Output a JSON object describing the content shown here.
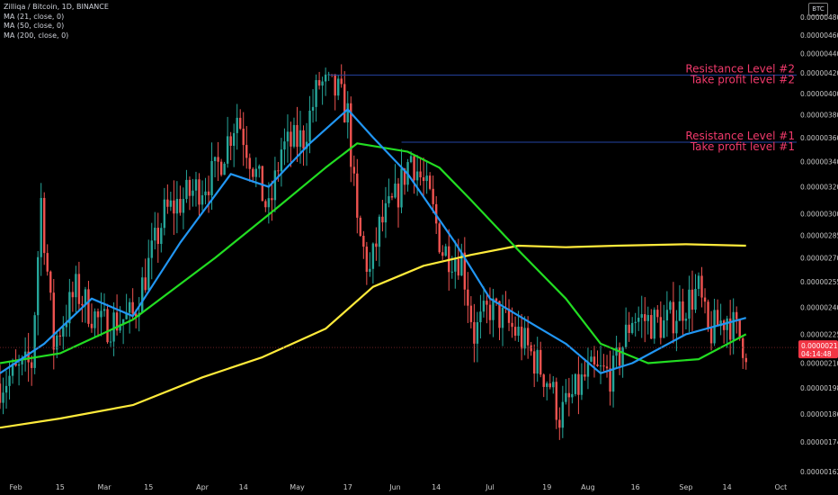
{
  "legend": {
    "symbol": "Zilliqa / Bitcoin, 1D, BINANCE",
    "ma21": "MA (21, close, 0)",
    "ma50": "MA (50, close, 0)",
    "ma200": "MA (200, close, 0)"
  },
  "currency_badge": "BTC",
  "price_badge": {
    "price": "0.00000218",
    "countdown": "04:14:48",
    "color": "#f23645"
  },
  "colors": {
    "background": "#000000",
    "up": "#26a69a",
    "down": "#ef5350",
    "ma21": "#2196f3",
    "ma50": "#22dd22",
    "ma200": "#ffeb3b",
    "resistance_line": "#2443a3",
    "annotation": "#f23a6c"
  },
  "chart_data": {
    "type": "candlestick",
    "y_scale": "log",
    "ylim": [
      1.6e-06,
      5e-06
    ],
    "xlim": [
      "2021-01-27",
      "2021-10-06"
    ],
    "y_ticks": [
      "0.00000480",
      "0.00000460",
      "0.00000440",
      "0.00000420",
      "0.00000400",
      "0.00000380",
      "0.00000360",
      "0.00000340",
      "0.00000320",
      "0.00000300",
      "0.00000285",
      "0.00000270",
      "0.00000255",
      "0.00000240",
      "0.00000225",
      "0.00000210",
      "0.00000198",
      "0.00000186",
      "0.00000174",
      "0.00000162"
    ],
    "x_ticks": [
      {
        "label": "Feb",
        "date": "2021-02-01"
      },
      {
        "label": "15",
        "date": "2021-02-15"
      },
      {
        "label": "Mar",
        "date": "2021-03-01"
      },
      {
        "label": "15",
        "date": "2021-03-15"
      },
      {
        "label": "Apr",
        "date": "2021-04-01"
      },
      {
        "label": "14",
        "date": "2021-04-14"
      },
      {
        "label": "May",
        "date": "2021-05-01"
      },
      {
        "label": "17",
        "date": "2021-05-17"
      },
      {
        "label": "Jun",
        "date": "2021-06-01"
      },
      {
        "label": "14",
        "date": "2021-06-14"
      },
      {
        "label": "Jul",
        "date": "2021-07-01"
      },
      {
        "label": "19",
        "date": "2021-07-19"
      },
      {
        "label": "Aug",
        "date": "2021-08-01"
      },
      {
        "label": "16",
        "date": "2021-08-16"
      },
      {
        "label": "Sep",
        "date": "2021-09-01"
      },
      {
        "label": "14",
        "date": "2021-09-14"
      },
      {
        "label": "Oct",
        "date": "2021-10-01"
      }
    ],
    "price_key_points": [
      {
        "date": "2021-01-27",
        "close": 2e-06
      },
      {
        "date": "2021-02-06",
        "close": 2.1e-06
      },
      {
        "date": "2021-02-09",
        "close": 3.1e-06
      },
      {
        "date": "2021-02-13",
        "close": 2.2e-06
      },
      {
        "date": "2021-02-20",
        "close": 2.5e-06
      },
      {
        "date": "2021-02-28",
        "close": 2.3e-06
      },
      {
        "date": "2021-03-10",
        "close": 2.35e-06
      },
      {
        "date": "2021-03-20",
        "close": 3e-06
      },
      {
        "date": "2021-04-05",
        "close": 3.3e-06
      },
      {
        "date": "2021-04-12",
        "close": 3.8e-06
      },
      {
        "date": "2021-04-22",
        "close": 3e-06
      },
      {
        "date": "2021-04-26",
        "close": 3.5e-06
      },
      {
        "date": "2021-05-03",
        "close": 3.6e-06
      },
      {
        "date": "2021-05-08",
        "close": 4.1e-06
      },
      {
        "date": "2021-05-14",
        "close": 4e-06
      },
      {
        "date": "2021-05-17",
        "close": 3.8e-06
      },
      {
        "date": "2021-05-20",
        "close": 2.9e-06
      },
      {
        "date": "2021-05-24",
        "close": 2.6e-06
      },
      {
        "date": "2021-05-27",
        "close": 2.9e-06
      },
      {
        "date": "2021-06-01",
        "close": 3.1e-06
      },
      {
        "date": "2021-06-06",
        "close": 3.45e-06
      },
      {
        "date": "2021-06-12",
        "close": 3.1e-06
      },
      {
        "date": "2021-06-16",
        "close": 2.75e-06
      },
      {
        "date": "2021-06-22",
        "close": 2.7e-06
      },
      {
        "date": "2021-06-26",
        "close": 2.25e-06
      },
      {
        "date": "2021-07-01",
        "close": 2.4e-06
      },
      {
        "date": "2021-07-10",
        "close": 2.25e-06
      },
      {
        "date": "2021-07-20",
        "close": 2e-06
      },
      {
        "date": "2021-07-23",
        "close": 1.85e-06
      },
      {
        "date": "2021-08-01",
        "close": 2.05e-06
      },
      {
        "date": "2021-08-09",
        "close": 2.05e-06
      },
      {
        "date": "2021-08-15",
        "close": 2.35e-06
      },
      {
        "date": "2021-08-25",
        "close": 2.3e-06
      },
      {
        "date": "2021-09-05",
        "close": 2.5e-06
      },
      {
        "date": "2021-09-08",
        "close": 2.25e-06
      },
      {
        "date": "2021-09-14",
        "close": 2.35e-06
      },
      {
        "date": "2021-09-20",
        "close": 2.18e-06
      }
    ],
    "ma21_key_points": [
      {
        "date": "2021-01-27",
        "value": 2.05e-06
      },
      {
        "date": "2021-02-10",
        "value": 2.2e-06
      },
      {
        "date": "2021-02-25",
        "value": 2.45e-06
      },
      {
        "date": "2021-03-10",
        "value": 2.35e-06
      },
      {
        "date": "2021-03-25",
        "value": 2.8e-06
      },
      {
        "date": "2021-04-10",
        "value": 3.3e-06
      },
      {
        "date": "2021-04-22",
        "value": 3.2e-06
      },
      {
        "date": "2021-05-05",
        "value": 3.55e-06
      },
      {
        "date": "2021-05-17",
        "value": 3.85e-06
      },
      {
        "date": "2021-05-25",
        "value": 3.6e-06
      },
      {
        "date": "2021-06-05",
        "value": 3.3e-06
      },
      {
        "date": "2021-06-20",
        "value": 2.8e-06
      },
      {
        "date": "2021-07-01",
        "value": 2.45e-06
      },
      {
        "date": "2021-07-15",
        "value": 2.3e-06
      },
      {
        "date": "2021-07-25",
        "value": 2.2e-06
      },
      {
        "date": "2021-08-05",
        "value": 2.05e-06
      },
      {
        "date": "2021-08-15",
        "value": 2.1e-06
      },
      {
        "date": "2021-09-01",
        "value": 2.25e-06
      },
      {
        "date": "2021-09-20",
        "value": 2.34e-06
      }
    ],
    "ma50_key_points": [
      {
        "date": "2021-01-27",
        "value": 2.1e-06
      },
      {
        "date": "2021-02-15",
        "value": 2.15e-06
      },
      {
        "date": "2021-03-10",
        "value": 2.33e-06
      },
      {
        "date": "2021-04-05",
        "value": 2.7e-06
      },
      {
        "date": "2021-04-25",
        "value": 3.05e-06
      },
      {
        "date": "2021-05-10",
        "value": 3.35e-06
      },
      {
        "date": "2021-05-20",
        "value": 3.55e-06
      },
      {
        "date": "2021-06-05",
        "value": 3.48e-06
      },
      {
        "date": "2021-06-15",
        "value": 3.35e-06
      },
      {
        "date": "2021-06-25",
        "value": 3.1e-06
      },
      {
        "date": "2021-07-10",
        "value": 2.75e-06
      },
      {
        "date": "2021-07-25",
        "value": 2.45e-06
      },
      {
        "date": "2021-08-05",
        "value": 2.2e-06
      },
      {
        "date": "2021-08-20",
        "value": 2.1e-06
      },
      {
        "date": "2021-09-05",
        "value": 2.12e-06
      },
      {
        "date": "2021-09-20",
        "value": 2.25e-06
      }
    ],
    "ma200_key_points": [
      {
        "date": "2021-01-27",
        "value": 1.8e-06
      },
      {
        "date": "2021-02-15",
        "value": 1.84e-06
      },
      {
        "date": "2021-03-10",
        "value": 1.9e-06
      },
      {
        "date": "2021-04-01",
        "value": 2.03e-06
      },
      {
        "date": "2021-04-20",
        "value": 2.13e-06
      },
      {
        "date": "2021-05-10",
        "value": 2.28e-06
      },
      {
        "date": "2021-05-25",
        "value": 2.52e-06
      },
      {
        "date": "2021-06-10",
        "value": 2.65e-06
      },
      {
        "date": "2021-06-25",
        "value": 2.72e-06
      },
      {
        "date": "2021-07-10",
        "value": 2.78e-06
      },
      {
        "date": "2021-07-25",
        "value": 2.77e-06
      },
      {
        "date": "2021-08-10",
        "value": 2.78e-06
      },
      {
        "date": "2021-09-01",
        "value": 2.79e-06
      },
      {
        "date": "2021-09-20",
        "value": 2.78e-06
      }
    ],
    "horizontal_levels": [
      {
        "name": "resistance-2",
        "price": 4.18e-06,
        "from": "2021-05-11",
        "labels": [
          "Resistance Level #2",
          "Take profit level #2"
        ]
      },
      {
        "name": "resistance-1",
        "price": 3.56e-06,
        "from": "2021-06-03",
        "labels": [
          "Resistance Level #1",
          "Take profit level #1"
        ]
      }
    ],
    "last_price": 2.18e-06
  }
}
